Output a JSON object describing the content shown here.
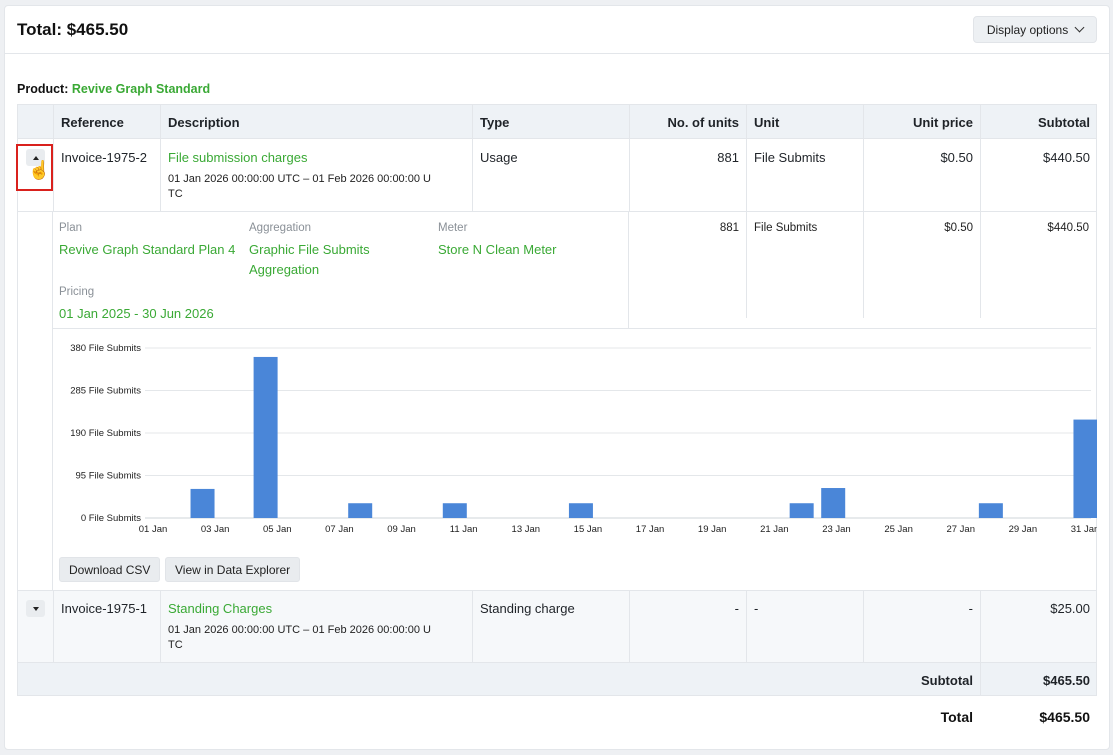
{
  "header": {
    "total": "Total: $465.50",
    "display_options": "Display options"
  },
  "product": {
    "label": "Product:",
    "name": "Revive Graph Standard"
  },
  "columns": [
    "Reference",
    "Description",
    "Type",
    "No. of units",
    "Unit",
    "Unit price",
    "Subtotal"
  ],
  "line1": {
    "reference": "Invoice-1975-2",
    "description": "File submission charges",
    "period_a": "01 Jan 2026 00:00:00 UTC – 01 Feb 2026 00:00:00 U",
    "period_b": "TC",
    "type": "Usage",
    "units": "881",
    "unit": "File Submits",
    "unit_price": "$0.50",
    "subtotal": "$440.50"
  },
  "detail": {
    "plan_label": "Plan",
    "plan_value": "Revive Graph Standard Plan 4",
    "aggregation_label": "Aggregation",
    "aggregation_value_a": "Graphic File Submits",
    "aggregation_value_b": "Aggregation",
    "meter_label": "Meter",
    "meter_value": "Store N Clean Meter",
    "pricing_label": "Pricing",
    "pricing_value": "01 Jan 2025 - 30 Jun 2026",
    "units": "881",
    "unit": "File Submits",
    "unit_price": "$0.50",
    "subtotal": "$440.50"
  },
  "chart_data": {
    "type": "bar",
    "y_ticks": [
      "380 File Submits",
      "285 File Submits",
      "190 File Submits",
      "95 File Submits",
      "0 File Submits"
    ],
    "x_ticks": [
      "01 Jan",
      "03 Jan",
      "05 Jan",
      "07 Jan",
      "09 Jan",
      "11 Jan",
      "13 Jan",
      "15 Jan",
      "17 Jan",
      "19 Jan",
      "21 Jan",
      "23 Jan",
      "25 Jan",
      "27 Jan",
      "29 Jan",
      "31 Jan"
    ],
    "ylim": [
      0,
      380
    ],
    "grid": true,
    "color": "#4a86d8",
    "values": [
      0,
      65,
      0,
      360,
      0,
      0,
      33,
      0,
      0,
      33,
      0,
      0,
      0,
      33,
      0,
      0,
      0,
      0,
      0,
      0,
      33,
      67,
      0,
      0,
      0,
      0,
      33,
      0,
      0,
      220
    ]
  },
  "chart_buttons": {
    "csv": "Download CSV",
    "explorer": "View in Data Explorer"
  },
  "line2": {
    "reference": "Invoice-1975-1",
    "description": "Standing Charges",
    "period_a": "01 Jan 2026 00:00:00 UTC – 01 Feb 2026 00:00:00 U",
    "period_b": "TC",
    "type": "Standing charge",
    "units": "-",
    "unit": "-",
    "unit_price": "-",
    "subtotal": "$25.00"
  },
  "subtotal_row": {
    "label": "Subtotal",
    "value": "$465.50"
  },
  "total_row": {
    "label": "Total",
    "value": "$465.50"
  }
}
